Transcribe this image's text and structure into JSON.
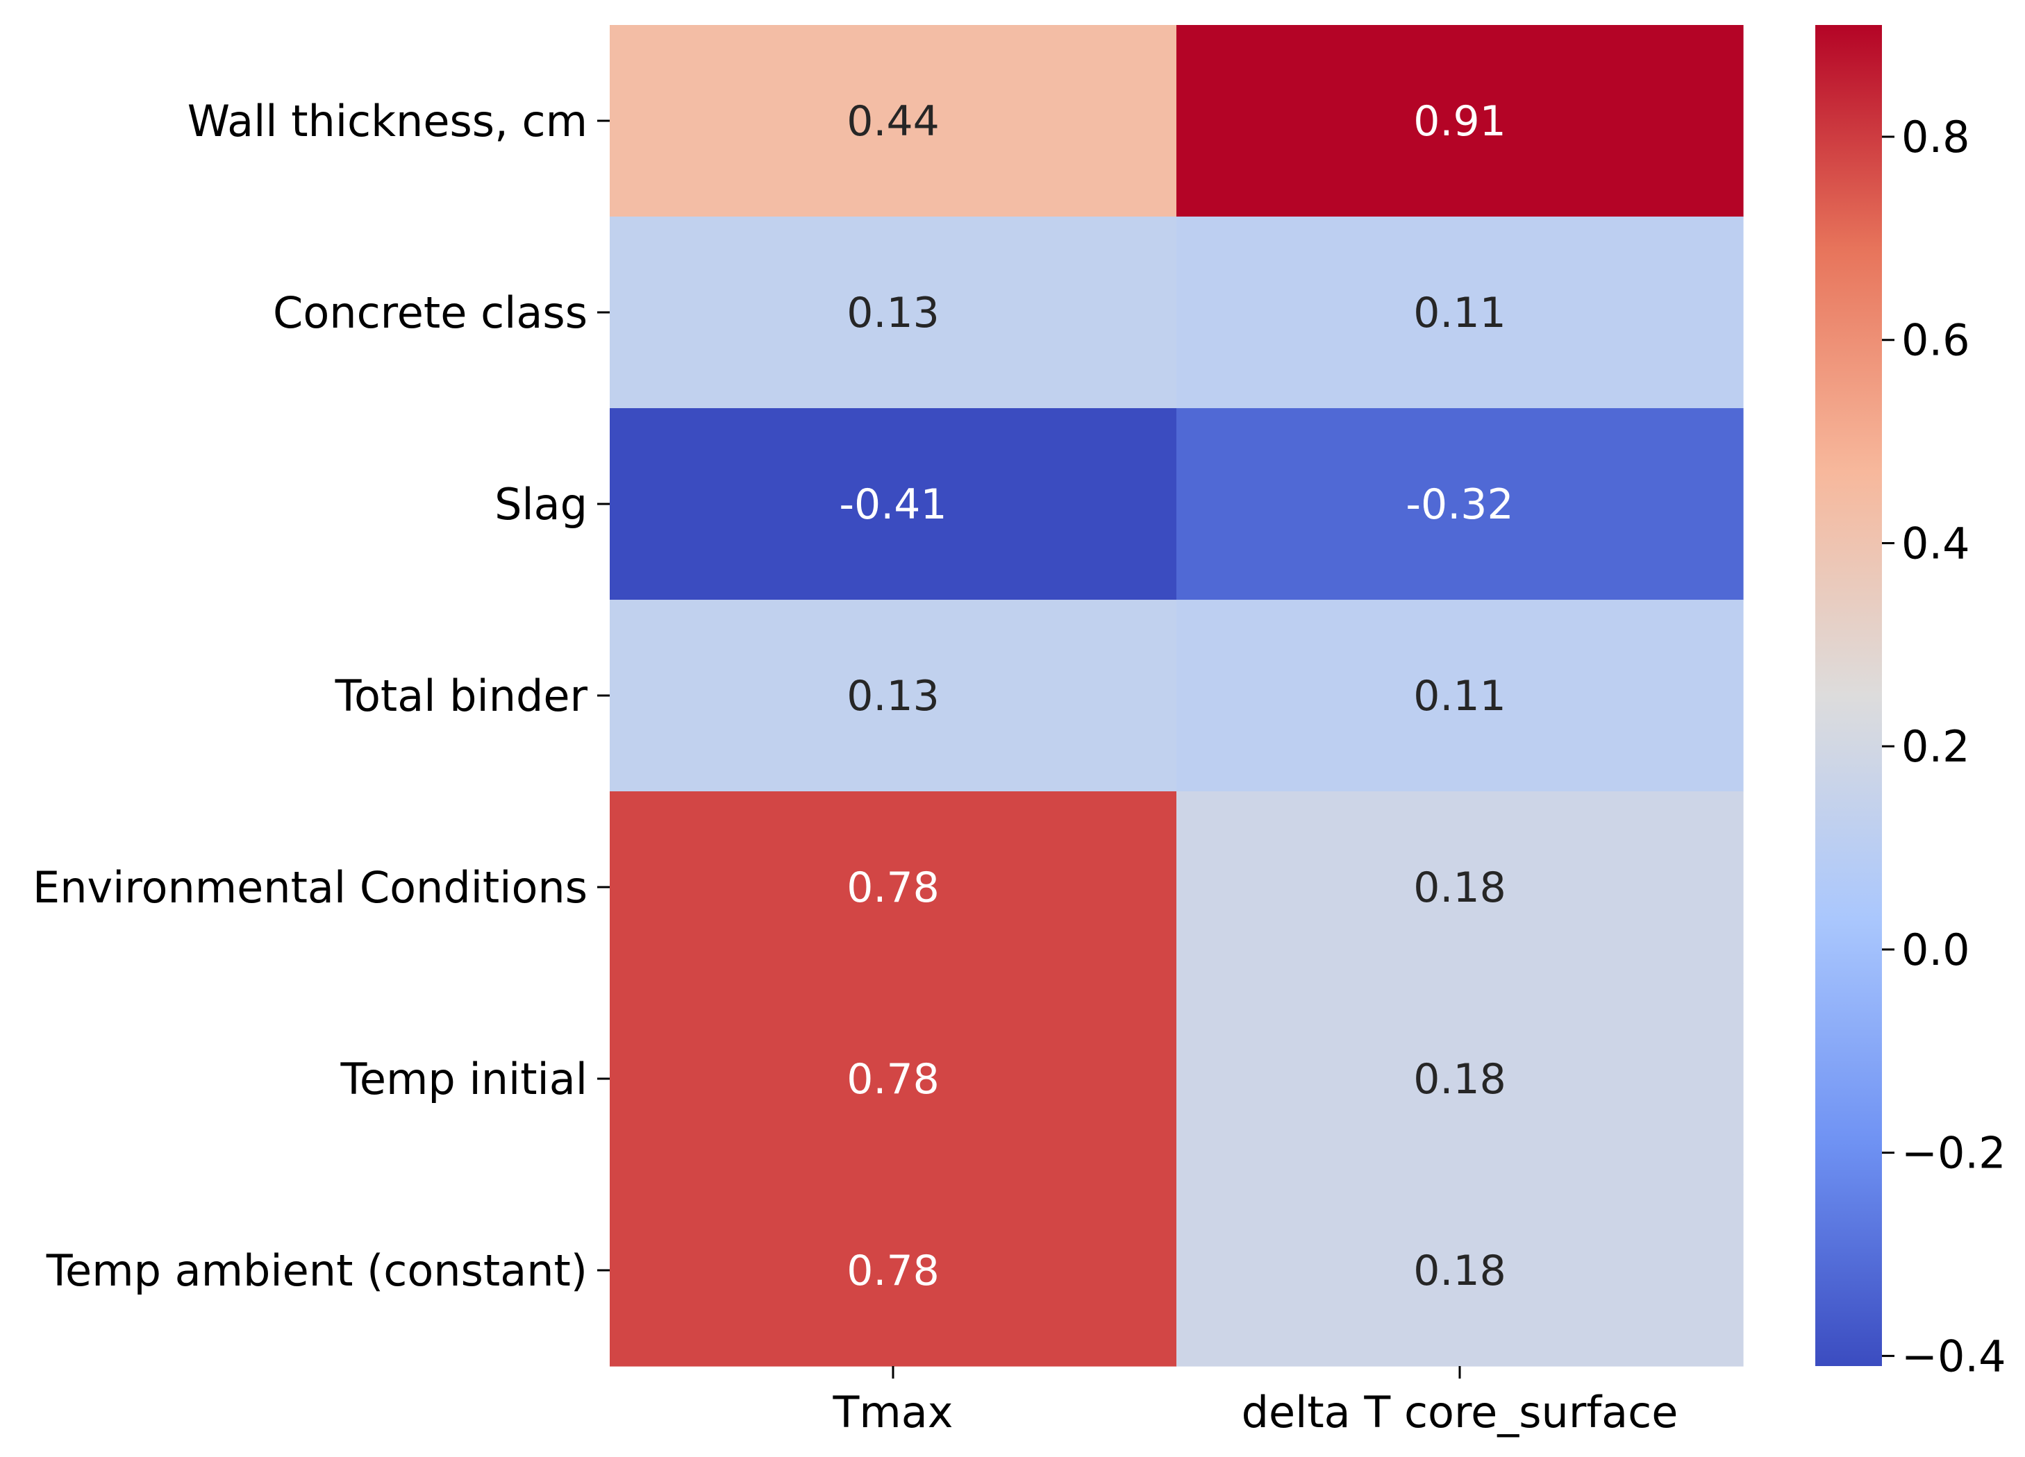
{
  "chart_data": {
    "type": "heatmap",
    "title": "",
    "xlabel": "",
    "ylabel": "",
    "columns": [
      "Tmax",
      "delta T core_surface"
    ],
    "rows": [
      "Wall thickness, cm",
      "Concrete class",
      "Slag",
      "Total binder",
      "Environmental Conditions",
      "Temp initial",
      "Temp ambient (constant)"
    ],
    "values": [
      [
        0.44,
        0.91
      ],
      [
        0.13,
        0.11
      ],
      [
        -0.41,
        -0.32
      ],
      [
        0.13,
        0.11
      ],
      [
        0.78,
        0.18
      ],
      [
        0.78,
        0.18
      ],
      [
        0.78,
        0.18
      ]
    ],
    "labels": [
      [
        "0.44",
        "0.91"
      ],
      [
        "0.13",
        "0.11"
      ],
      [
        "-0.41",
        "-0.32"
      ],
      [
        "0.13",
        "0.11"
      ],
      [
        "0.78",
        "0.18"
      ],
      [
        "0.78",
        "0.18"
      ],
      [
        "0.78",
        "0.18"
      ]
    ],
    "colormap": "coolwarm",
    "vmin": -0.41,
    "vmax": 0.91,
    "colorbar_ticks": [
      {
        "value": 0.8,
        "label": "0.8"
      },
      {
        "value": 0.6,
        "label": "0.6"
      },
      {
        "value": 0.4,
        "label": "0.4"
      },
      {
        "value": 0.2,
        "label": "0.2"
      },
      {
        "value": 0.0,
        "label": "0.0"
      },
      {
        "value": -0.2,
        "label": "−0.2"
      },
      {
        "value": -0.4,
        "label": "−0.4"
      }
    ]
  },
  "colors": {
    "cmap_stops": [
      "#3b4cc0",
      "#6f92f3",
      "#aac7fd",
      "#dddcdc",
      "#f7b89c",
      "#e7745b",
      "#b40426"
    ],
    "text_dark": "#262626",
    "text_light": "#ffffff",
    "tick": "#000000"
  }
}
